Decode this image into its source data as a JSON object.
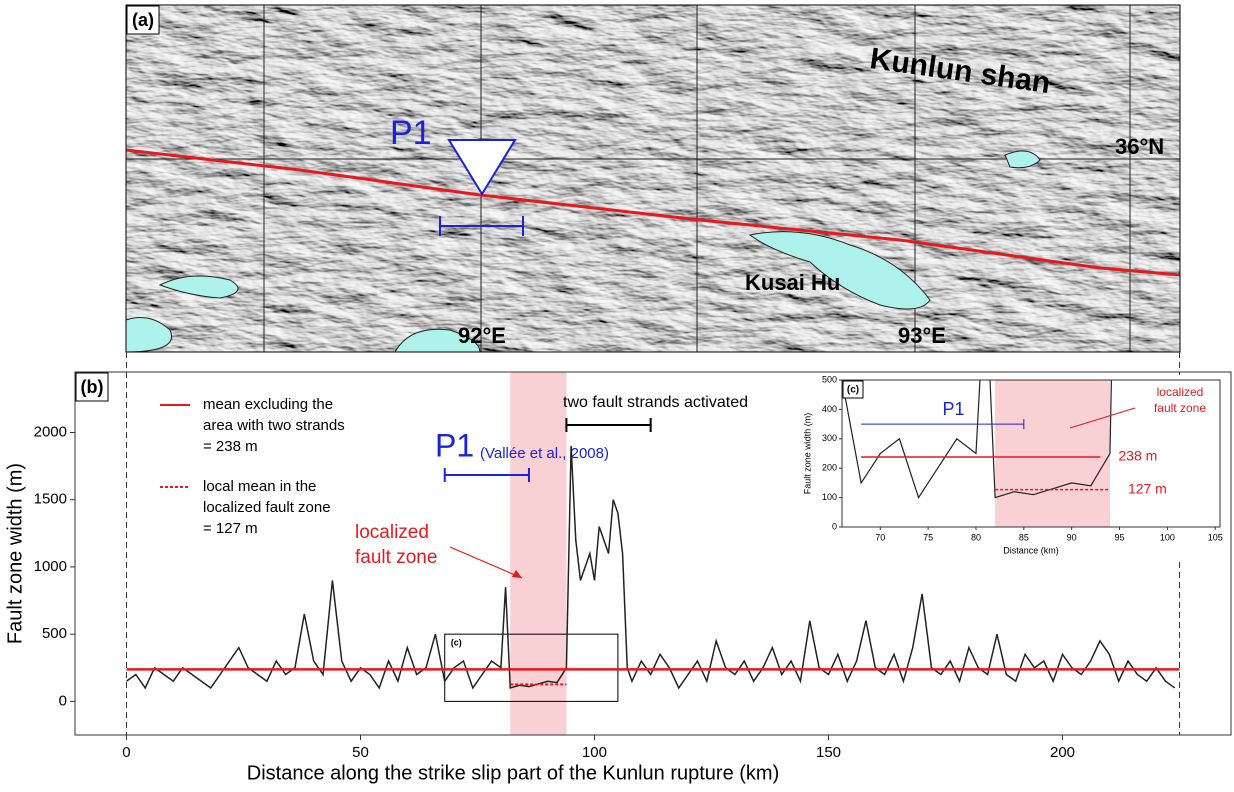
{
  "map": {
    "panel": "(a)",
    "range_label": "Kunlun shan",
    "lat_label": "36°N",
    "site": "P1",
    "lake": "Kusai Hu",
    "lon_labels": [
      "92°E",
      "93°E"
    ]
  },
  "chart_data": {
    "type": "line",
    "panel": "(b)",
    "xlabel": "Distance along the strike slip part of the Kunlun rupture (km)",
    "ylabel": "Fault zone width (m)",
    "xlim": [
      -11,
      236
    ],
    "ylim": [
      -250,
      2450
    ],
    "xticks": [
      0,
      50,
      100,
      150,
      200
    ],
    "yticks": [
      0,
      500,
      1000,
      1500,
      2000
    ],
    "extent": [
      0,
      225
    ],
    "x": [
      0,
      2,
      4,
      6,
      8,
      10,
      12,
      14,
      16,
      18,
      20,
      22,
      24,
      26,
      28,
      30,
      32,
      34,
      36,
      38,
      40,
      42,
      44,
      46,
      48,
      50,
      52,
      54,
      56,
      58,
      60,
      62,
      64,
      66,
      68,
      70,
      72,
      74,
      76,
      78,
      80,
      81,
      82,
      84,
      86,
      88,
      90,
      92,
      94,
      95,
      96,
      97,
      98,
      99,
      100,
      101,
      102,
      103,
      104,
      105,
      106,
      107,
      108,
      110,
      112,
      114,
      116,
      118,
      120,
      122,
      124,
      126,
      128,
      130,
      132,
      134,
      136,
      138,
      140,
      142,
      144,
      146,
      148,
      150,
      152,
      154,
      156,
      158,
      160,
      162,
      164,
      166,
      168,
      170,
      172,
      174,
      176,
      178,
      180,
      182,
      184,
      186,
      188,
      190,
      192,
      194,
      196,
      198,
      200,
      202,
      204,
      206,
      208,
      210,
      212,
      214,
      216,
      218,
      220,
      222,
      224
    ],
    "series": [
      {
        "color": "#222222",
        "values": [
          150,
          200,
          100,
          250,
          200,
          150,
          250,
          200,
          150,
          100,
          200,
          300,
          400,
          250,
          200,
          150,
          300,
          200,
          250,
          650,
          300,
          200,
          900,
          300,
          150,
          250,
          200,
          100,
          300,
          150,
          400,
          200,
          250,
          500,
          150,
          250,
          300,
          100,
          200,
          300,
          250,
          850,
          100,
          120,
          110,
          130,
          150,
          140,
          250,
          1900,
          1200,
          900,
          1000,
          1100,
          900,
          1300,
          1200,
          1100,
          1500,
          1400,
          1100,
          250,
          150,
          300,
          200,
          350,
          250,
          100,
          200,
          300,
          150,
          450,
          250,
          200,
          300,
          150,
          250,
          400,
          200,
          300,
          150,
          600,
          250,
          200,
          350,
          150,
          300,
          600,
          250,
          200,
          350,
          150,
          400,
          800,
          250,
          200,
          300,
          150,
          400,
          250,
          200,
          500,
          200,
          150,
          350,
          250,
          300,
          150,
          350,
          250,
          200,
          300,
          450,
          350,
          150,
          300,
          200,
          150,
          250,
          150,
          100
        ]
      }
    ],
    "mean": 238,
    "mean_color": "#e8191c",
    "local_mean": {
      "value": 127,
      "x": [
        82,
        94
      ]
    },
    "highlight": [
      82,
      94
    ],
    "box": {
      "label": "(c)",
      "x": [
        68,
        105
      ],
      "y": [
        0,
        500
      ]
    },
    "legend": {
      "mean": [
        "mean excluding the",
        "area with two strands",
        "= 238 m"
      ],
      "local": [
        "local mean in the",
        "localized fault zone",
        "= 127 m"
      ]
    },
    "p1": {
      "label": "P1",
      "ref": "(Vallée et al., 2008)",
      "range": [
        68,
        86
      ]
    },
    "strands": {
      "label": "two fault strands activated",
      "range": [
        94,
        112
      ]
    },
    "zone_label": [
      "localized",
      "fault zone"
    ],
    "inset": {
      "panel": "(c)",
      "xlabel": "Distance (km)",
      "ylabel": "Fault zone width (m)",
      "xlim": [
        66,
        105.5
      ],
      "ylim": [
        0,
        500
      ],
      "xticks": [
        70,
        75,
        80,
        85,
        90,
        95,
        100,
        105
      ],
      "yticks": [
        0,
        100,
        200,
        300,
        400,
        500
      ],
      "p1": {
        "label": "P1",
        "range": [
          68,
          85
        ],
        "y": 350
      },
      "mean_range": [
        68,
        93
      ],
      "mean_label": "238 m",
      "local_label": "127 m",
      "zone_label": [
        "localized",
        "fault zone"
      ]
    }
  }
}
